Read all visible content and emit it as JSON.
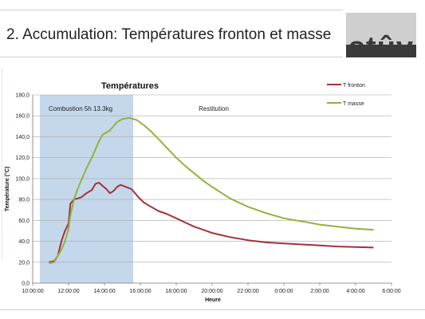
{
  "slide": {
    "title": "2. Accumulation: Températures fronton et masse",
    "logo_text": "stûv"
  },
  "chart_data": {
    "type": "line",
    "title": "Températures",
    "xlabel": "Heure",
    "ylabel": "Température (°C)",
    "ylim": [
      0,
      180
    ],
    "yticks": [
      "0,0",
      "20,0",
      "40,0",
      "60,0",
      "80,0",
      "100,0",
      "120,0",
      "140,0",
      "160,0",
      "180,0"
    ],
    "xticks": [
      "10:00:00",
      "12:00:00",
      "14:00:00",
      "16:00:00",
      "18:00:00",
      "20:00:00",
      "22:00:00",
      "0:00:00",
      "2:00:00",
      "4:00:00",
      "6:00:00"
    ],
    "x_unit": "hours since 10:00:00",
    "xlim": [
      0,
      20
    ],
    "grid": true,
    "legend_position": "top-right",
    "annotations": {
      "combustion_label": "Combustion 5h 13.3kg",
      "combustion_range": [
        0.4,
        5.6
      ],
      "restitution_label": "Restitution"
    },
    "series": [
      {
        "name": "T fronton",
        "color": "#a5303a",
        "x": [
          0.9,
          1.2,
          1.4,
          1.6,
          1.8,
          2.0,
          2.1,
          2.3,
          2.5,
          2.7,
          3.0,
          3.3,
          3.5,
          3.7,
          3.9,
          4.1,
          4.3,
          4.5,
          4.7,
          4.9,
          5.2,
          5.5,
          5.7,
          5.9,
          6.2,
          6.6,
          7.0,
          7.5,
          8.0,
          8.5,
          9.0,
          9.5,
          10.0,
          11.0,
          12.0,
          13.0,
          14.0,
          15.0,
          16.0,
          17.0,
          18.0,
          19.0
        ],
        "y": [
          20,
          21,
          26,
          40,
          50,
          57,
          76,
          80,
          81,
          82,
          86,
          89,
          95,
          96,
          93,
          90,
          86,
          88,
          92,
          94,
          92,
          90,
          86,
          82,
          77,
          73,
          69,
          66,
          62,
          58,
          54,
          51,
          48,
          44,
          41,
          39,
          38,
          37,
          36,
          35,
          34.5,
          34
        ]
      },
      {
        "name": "T masse",
        "color": "#93b23c",
        "x": [
          0.9,
          1.2,
          1.4,
          1.6,
          1.8,
          2.0,
          2.1,
          2.3,
          2.5,
          2.7,
          3.0,
          3.3,
          3.5,
          3.7,
          3.9,
          4.1,
          4.3,
          4.5,
          4.7,
          5.0,
          5.4,
          5.8,
          6.2,
          6.6,
          7.0,
          7.5,
          8.0,
          8.5,
          9.0,
          9.5,
          10.0,
          11.0,
          12.0,
          13.0,
          14.0,
          15.0,
          16.0,
          17.0,
          18.0,
          19.0
        ],
        "y": [
          19,
          20,
          26,
          32,
          40,
          52,
          65,
          80,
          90,
          98,
          110,
          120,
          128,
          136,
          142,
          144,
          146,
          150,
          154,
          157,
          158,
          156,
          151,
          145,
          138,
          129,
          120,
          112,
          105,
          98,
          92,
          81,
          73,
          67,
          62,
          59,
          56,
          54,
          52,
          51
        ]
      }
    ]
  }
}
